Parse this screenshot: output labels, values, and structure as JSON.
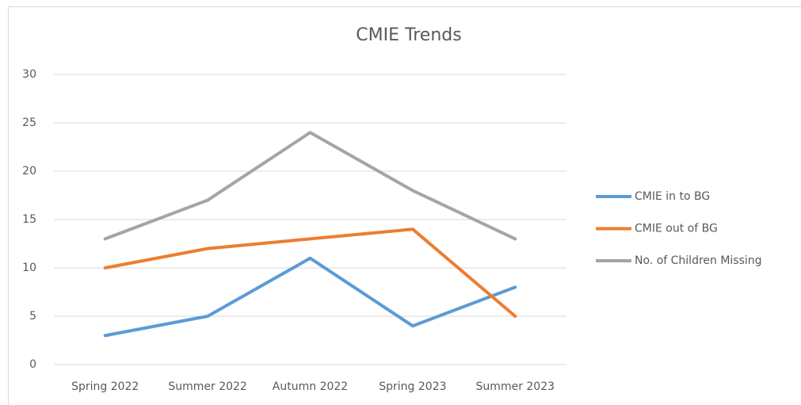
{
  "chart_data": {
    "type": "line",
    "title": "CMIE Trends",
    "categories": [
      "Spring 2022",
      "Summer 2022",
      "Autumn 2022",
      "Spring 2023",
      "Summer 2023"
    ],
    "series": [
      {
        "name": "CMIE in to BG",
        "color": "#5b9bd5",
        "values": [
          3,
          5,
          11,
          4,
          8
        ]
      },
      {
        "name": "CMIE out of BG",
        "color": "#ed7d31",
        "values": [
          10,
          12,
          13,
          14,
          5
        ]
      },
      {
        "name": "No. of Children Missing",
        "color": "#a5a5a5",
        "values": [
          13,
          17,
          24,
          18,
          13
        ]
      }
    ],
    "ylim": [
      0,
      30
    ],
    "yticks": [
      0,
      5,
      10,
      15,
      20,
      25,
      30
    ],
    "grid": true,
    "legend": "right"
  }
}
